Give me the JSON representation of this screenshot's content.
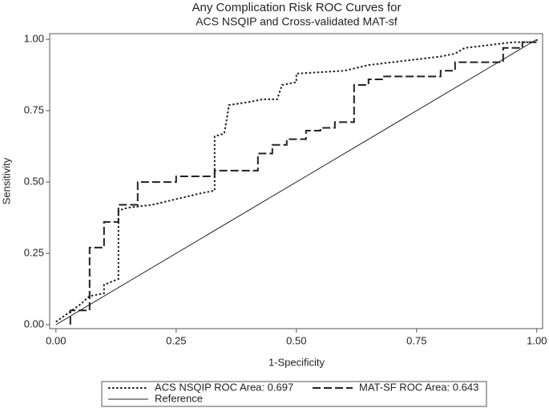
{
  "chart_data": {
    "type": "line",
    "title": "Any Complication Risk ROC Curves for",
    "subtitle": "ACS NSQIP and Cross-validated MAT-sf",
    "x_label": "1-Specificity",
    "y_label": "Sensitivity",
    "xlim": [
      -0.013,
      1.012
    ],
    "ylim": [
      -0.014,
      1.02
    ],
    "xticks": [
      {
        "value": 0,
        "label": "0.00"
      },
      {
        "value": 0.25,
        "label": "0.25"
      },
      {
        "value": 0.5,
        "label": "0.50"
      },
      {
        "value": 0.75,
        "label": "0.75"
      },
      {
        "value": 1,
        "label": "1.00"
      }
    ],
    "yticks": [
      {
        "value": 0,
        "label": "0.00"
      },
      {
        "value": 0.25,
        "label": "0.25"
      },
      {
        "value": 0.5,
        "label": "0.50"
      },
      {
        "value": 0.75,
        "label": "0.75"
      },
      {
        "value": 1,
        "label": "1.00"
      }
    ],
    "grid": false,
    "legend": "bottom",
    "series": [
      {
        "name": "ACS NSQIP ROC Area: 0.697",
        "color": "#222222",
        "style": "dotted",
        "x": [
          0,
          0.05,
          0.07,
          0.1,
          0.1,
          0.13,
          0.13,
          0.15,
          0.2,
          0.25,
          0.3,
          0.33,
          0.33,
          0.35,
          0.36,
          0.4,
          0.43,
          0.46,
          0.47,
          0.5,
          0.5,
          0.6,
          0.65,
          0.7,
          0.75,
          0.8,
          0.83,
          0.85,
          0.9,
          0.95,
          1,
          1
        ],
        "values": [
          0.01,
          0.07,
          0.1,
          0.11,
          0.14,
          0.16,
          0.4,
          0.41,
          0.42,
          0.44,
          0.46,
          0.47,
          0.66,
          0.67,
          0.77,
          0.78,
          0.79,
          0.79,
          0.84,
          0.85,
          0.88,
          0.89,
          0.91,
          0.92,
          0.93,
          0.94,
          0.95,
          0.97,
          0.98,
          0.99,
          0.99,
          1
        ]
      },
      {
        "name": "MAT-SF ROC Area: 0.643",
        "color": "#222222",
        "style": "dashed",
        "x": [
          0.03,
          0.03,
          0.07,
          0.07,
          0.1,
          0.1,
          0.13,
          0.13,
          0.17,
          0.17,
          0.25,
          0.25,
          0.33,
          0.33,
          0.42,
          0.42,
          0.45,
          0.45,
          0.48,
          0.48,
          0.52,
          0.52,
          0.55,
          0.55,
          0.58,
          0.58,
          0.62,
          0.62,
          0.65,
          0.65,
          0.68,
          0.68,
          0.8,
          0.8,
          0.83,
          0.83,
          0.93,
          0.93,
          0.97,
          0.97,
          1,
          1
        ],
        "values": [
          0,
          0.05,
          0.05,
          0.27,
          0.27,
          0.36,
          0.36,
          0.42,
          0.42,
          0.5,
          0.5,
          0.52,
          0.52,
          0.54,
          0.54,
          0.6,
          0.6,
          0.63,
          0.63,
          0.65,
          0.65,
          0.68,
          0.68,
          0.69,
          0.69,
          0.71,
          0.71,
          0.84,
          0.84,
          0.86,
          0.86,
          0.87,
          0.87,
          0.89,
          0.89,
          0.92,
          0.92,
          0.97,
          0.97,
          0.99,
          0.99,
          1
        ]
      },
      {
        "name": "Reference",
        "color": "#222222",
        "style": "solid",
        "x": [
          0,
          1
        ],
        "values": [
          0,
          1
        ]
      }
    ]
  }
}
